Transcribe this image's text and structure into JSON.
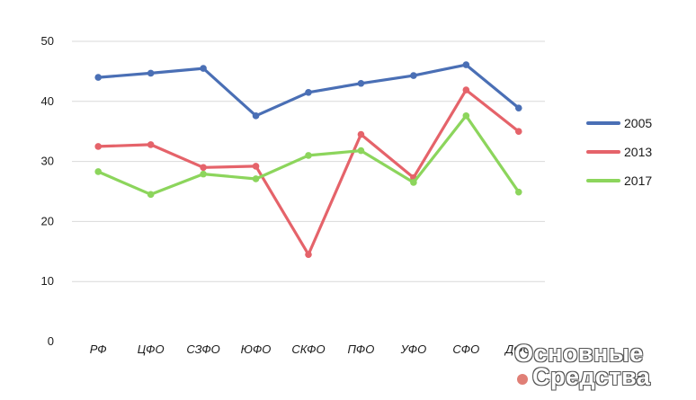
{
  "chart_data": {
    "type": "line",
    "categories": [
      "РФ",
      "ЦФО",
      "СЗФО",
      "ЮФО",
      "СКФО",
      "ПФО",
      "УФО",
      "СФО",
      "ДФО"
    ],
    "series": [
      {
        "name": "2005",
        "color": "#4a6fb5",
        "values": [
          44.0,
          44.7,
          45.5,
          37.6,
          41.5,
          43.0,
          44.3,
          46.1,
          38.9
        ]
      },
      {
        "name": "2013",
        "color": "#e5636a",
        "values": [
          32.5,
          32.8,
          29.0,
          29.2,
          14.5,
          34.5,
          27.3,
          41.9,
          35.0
        ]
      },
      {
        "name": "2017",
        "color": "#8cd55c",
        "values": [
          28.3,
          24.5,
          27.9,
          27.1,
          31.0,
          31.8,
          26.5,
          37.6,
          24.9
        ]
      }
    ],
    "y_ticks": [
      "0",
      "10",
      "20",
      "30",
      "40",
      "50"
    ],
    "ylim": [
      0,
      50
    ],
    "grid": true,
    "legend_position": "right",
    "title": "",
    "xlabel": "",
    "ylabel": ""
  },
  "watermark": {
    "line1": "Основные",
    "line2": "Средства",
    "dot_color": "#e07f76"
  }
}
